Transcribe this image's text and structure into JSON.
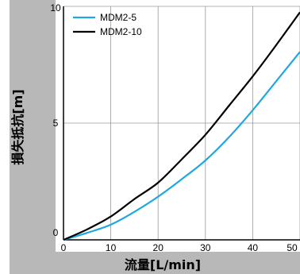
{
  "chart_data": {
    "type": "line",
    "xlabel": "流量[L/min]",
    "ylabel": "損失抵抗[m]",
    "xlim": [
      0,
      50
    ],
    "ylim": [
      0,
      10
    ],
    "x_ticks": [
      "0",
      "10",
      "20",
      "30",
      "40",
      "50"
    ],
    "y_ticks": [
      "0",
      "5",
      "10"
    ],
    "grid": true,
    "legend_position": "top-left",
    "series": [
      {
        "name": "MDM2-5",
        "color": "#1fa8e0",
        "x": [
          0,
          5,
          10,
          15,
          20,
          25,
          30,
          35,
          40,
          45,
          50
        ],
        "y": [
          0,
          0.3,
          0.65,
          1.2,
          1.85,
          2.6,
          3.4,
          4.4,
          5.55,
          6.8,
          8.05
        ]
      },
      {
        "name": "MDM2-10",
        "color": "#000000",
        "x": [
          0,
          5,
          10,
          15,
          20,
          25,
          30,
          35,
          40,
          45,
          50
        ],
        "y": [
          0,
          0.45,
          1.0,
          1.75,
          2.45,
          3.45,
          4.5,
          5.75,
          7.0,
          8.35,
          9.75
        ]
      }
    ]
  }
}
